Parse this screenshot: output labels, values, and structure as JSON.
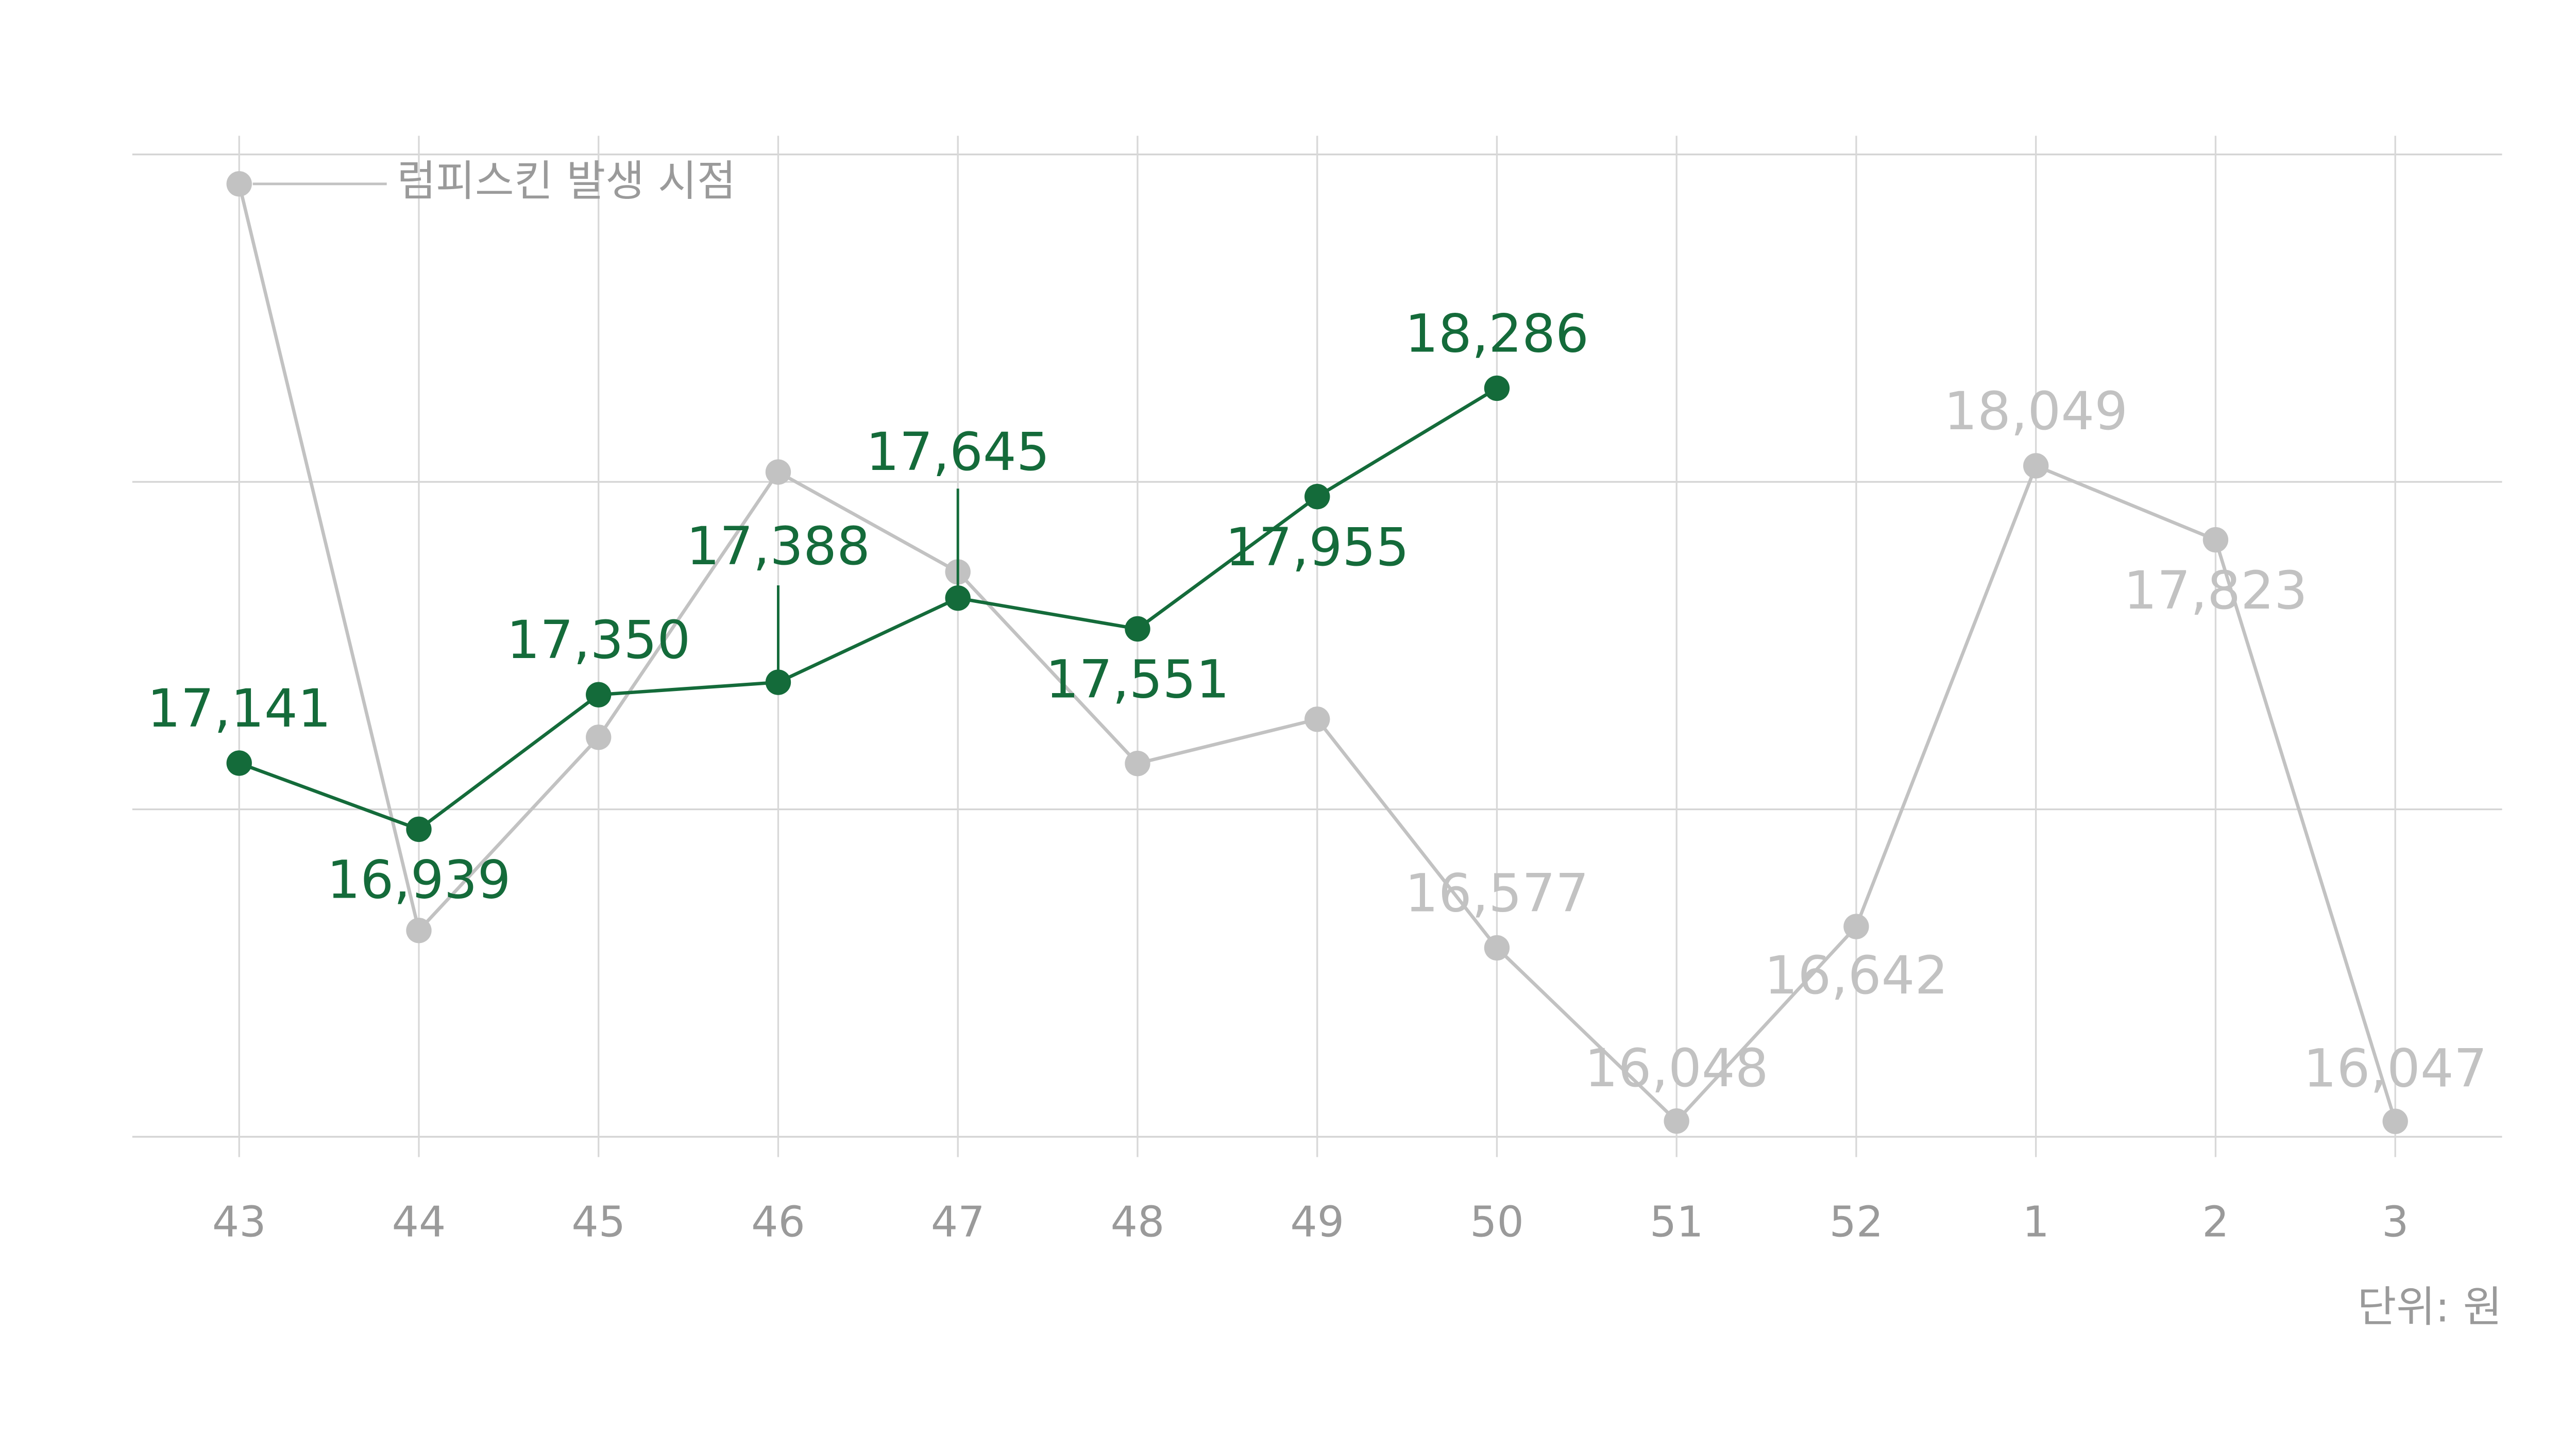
{
  "chart_data": {
    "type": "line",
    "categories": [
      "43",
      "44",
      "45",
      "46",
      "47",
      "48",
      "49",
      "50",
      "51",
      "52",
      "1",
      "2",
      "3"
    ],
    "series": [
      {
        "color": "#c2c2c2",
        "values": [
          18910,
          16630,
          17220,
          18030,
          17725,
          17140,
          17275,
          16577,
          16048,
          16642,
          18049,
          17823,
          16047
        ],
        "value_labels": [
          null,
          null,
          null,
          null,
          null,
          null,
          null,
          "16,577",
          "16,048",
          "16,642",
          "18,049",
          "17,823",
          "16,047"
        ]
      },
      {
        "color": "#146b3a",
        "values": [
          17141,
          16939,
          17350,
          17388,
          17645,
          17551,
          17955,
          18286,
          null,
          null,
          null,
          null,
          null
        ],
        "value_labels": [
          "17,141",
          "16,939",
          "17,350",
          "17,388",
          "17,645",
          "17,551",
          "17,955",
          "18,286",
          null,
          null,
          null,
          null,
          null
        ]
      }
    ],
    "ylim": [
      16000,
      19000
    ],
    "yticks": [
      16000,
      17000,
      18000,
      19000
    ],
    "grid": true,
    "annotation": "럼피스킨 발생 시점",
    "unit_note": "단위: 원"
  }
}
